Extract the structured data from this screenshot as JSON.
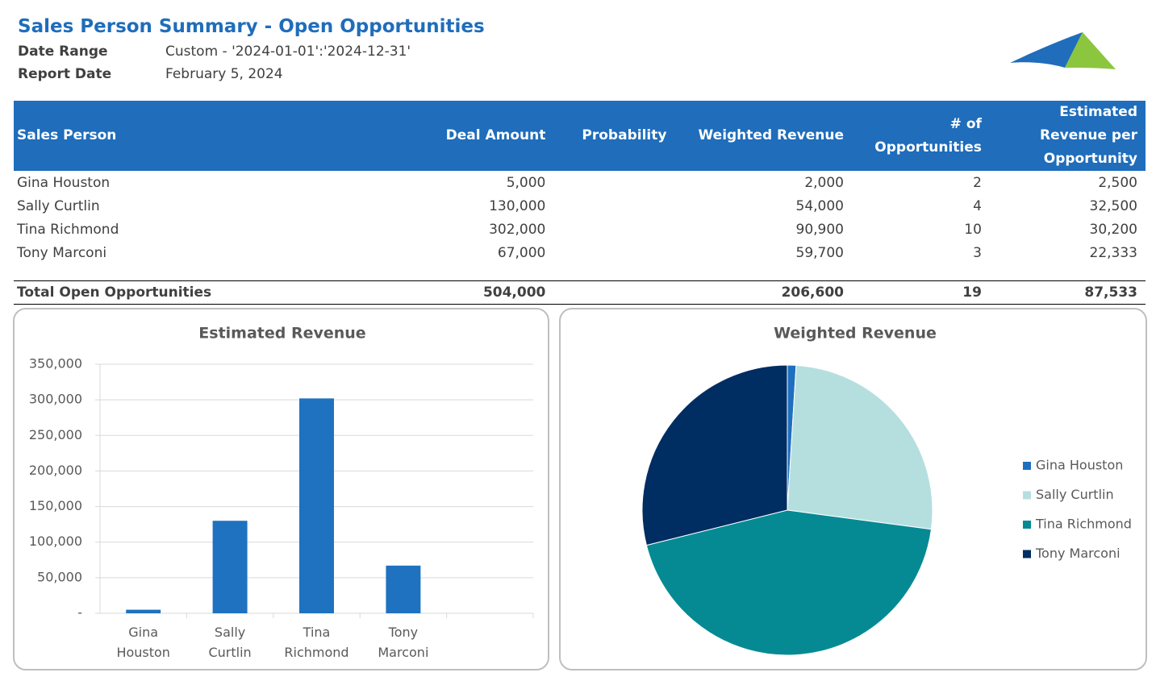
{
  "header": {
    "title": "Sales Person Summary - Open Opportunities",
    "fields": [
      {
        "label": "Date Range",
        "value": "Custom - '2024-01-01':'2024-12-31'"
      },
      {
        "label": "Report Date",
        "value": "February 5, 2024"
      }
    ]
  },
  "table": {
    "columns": [
      "Sales Person",
      "Deal Amount",
      "Probability",
      "Weighted Revenue",
      "# of Opportunities",
      "Estimated Revenue per Opportunity"
    ],
    "rows": [
      [
        "Gina Houston",
        "5,000",
        "",
        "2,000",
        "2",
        "2,500"
      ],
      [
        "Sally Curtlin",
        "130,000",
        "",
        "54,000",
        "4",
        "32,500"
      ],
      [
        "Tina Richmond",
        "302,000",
        "",
        "90,900",
        "10",
        "30,200"
      ],
      [
        "Tony Marconi",
        "67,000",
        "",
        "59,700",
        "3",
        "22,333"
      ]
    ],
    "total": [
      "Total Open Opportunities",
      "504,000",
      "",
      "206,600",
      "19",
      "87,533"
    ]
  },
  "chart_data": [
    {
      "type": "bar",
      "title": "Estimated Revenue",
      "categories": [
        "Gina Houston",
        "Sally Curtlin",
        "Tina Richmond",
        "Tony Marconi",
        null
      ],
      "values": [
        5000,
        130000,
        302000,
        67000,
        null
      ],
      "color": "#1f72bf",
      "ylim": [
        0,
        350000
      ],
      "yticks": [
        {
          "value": 0,
          "label": "-"
        },
        {
          "value": 50000,
          "label": "50,000"
        },
        {
          "value": 100000,
          "label": "100,000"
        },
        {
          "value": 150000,
          "label": "150,000"
        },
        {
          "value": 200000,
          "label": "200,000"
        },
        {
          "value": 250000,
          "label": "250,000"
        },
        {
          "value": 300000,
          "label": "300,000"
        },
        {
          "value": 350000,
          "label": "350,000"
        }
      ],
      "grid": true
    },
    {
      "type": "pie",
      "title": "Weighted Revenue",
      "categories": [
        "Gina Houston",
        "Sally Curtlin",
        "Tina Richmond",
        "Tony Marconi"
      ],
      "values": [
        2000,
        54000,
        90900,
        59700
      ],
      "colors": [
        "#1f6fbf",
        "#b5dfdf",
        "#058a94",
        "#002d62"
      ],
      "legend": "right"
    }
  ]
}
